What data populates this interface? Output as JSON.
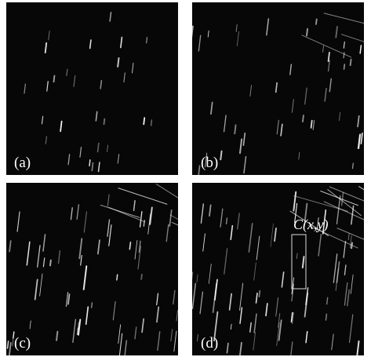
{
  "panels": [
    {
      "label": "(a)"
    },
    {
      "label": "(b)"
    },
    {
      "label": "(c)"
    },
    {
      "label": "(d)"
    }
  ],
  "annotation": "C(x,y)"
}
